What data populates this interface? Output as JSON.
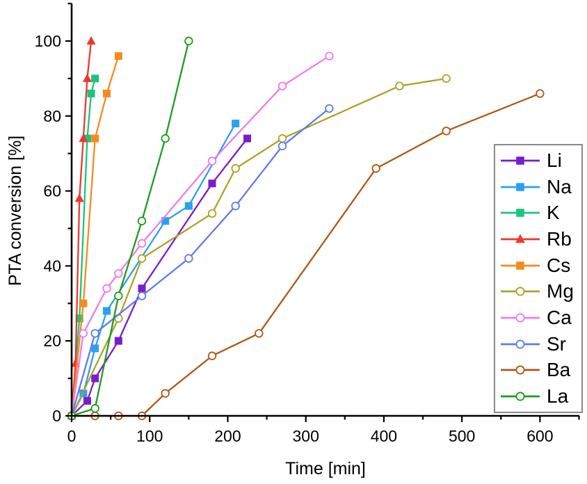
{
  "chart_data": {
    "type": "line",
    "title": "",
    "xlabel": "Time [min]",
    "ylabel": "PTA conversion [%]",
    "xlim": [
      0,
      650
    ],
    "ylim": [
      0,
      110
    ],
    "x_ticks_major": [
      0,
      100,
      200,
      300,
      400,
      500,
      600
    ],
    "x_ticks_minor": [
      50,
      150,
      250,
      350,
      450,
      550,
      650
    ],
    "y_ticks_major": [
      0,
      20,
      40,
      60,
      80,
      100
    ],
    "y_ticks_minor": [
      10,
      30,
      50,
      70,
      90,
      110
    ],
    "grid": false,
    "legend_position": "inside-right",
    "background": "#FFFFFF",
    "axis_color": "#000000",
    "legend_border_color": "#8A8A8A",
    "series": [
      {
        "name": "Li",
        "color": "#7A1CCB",
        "marker": "square-filled",
        "points": [
          [
            0,
            0
          ],
          [
            20,
            4
          ],
          [
            30,
            10
          ],
          [
            60,
            20
          ],
          [
            90,
            34
          ],
          [
            180,
            62
          ],
          [
            225,
            74
          ]
        ]
      },
      {
        "name": "Na",
        "color": "#2AA0F2",
        "marker": "square-filled",
        "points": [
          [
            0,
            0
          ],
          [
            15,
            6
          ],
          [
            30,
            18
          ],
          [
            45,
            28
          ],
          [
            120,
            52
          ],
          [
            150,
            56
          ],
          [
            210,
            78
          ]
        ]
      },
      {
        "name": "K",
        "color": "#19C57D",
        "marker": "square-filled",
        "points": [
          [
            0,
            0
          ],
          [
            10,
            26
          ],
          [
            20,
            74
          ],
          [
            25,
            86
          ],
          [
            30,
            90
          ]
        ]
      },
      {
        "name": "Rb",
        "color": "#F1362E",
        "marker": "triangle-filled",
        "points": [
          [
            0,
            0
          ],
          [
            5,
            14
          ],
          [
            10,
            58
          ],
          [
            15,
            74
          ],
          [
            20,
            90
          ],
          [
            25,
            100
          ]
        ]
      },
      {
        "name": "Cs",
        "color": "#F78A1E",
        "marker": "square-filled",
        "points": [
          [
            0,
            0
          ],
          [
            15,
            30
          ],
          [
            30,
            74
          ],
          [
            45,
            86
          ],
          [
            60,
            96
          ]
        ]
      },
      {
        "name": "Mg",
        "color": "#AEA226",
        "marker": "circle-open",
        "points": [
          [
            0,
            0
          ],
          [
            60,
            26
          ],
          [
            90,
            42
          ],
          [
            180,
            54
          ],
          [
            210,
            66
          ],
          [
            270,
            74
          ],
          [
            420,
            88
          ],
          [
            480,
            90
          ]
        ]
      },
      {
        "name": "Ca",
        "color": "#EF7BE9",
        "marker": "circle-open",
        "points": [
          [
            0,
            0
          ],
          [
            15,
            22
          ],
          [
            45,
            34
          ],
          [
            60,
            38
          ],
          [
            90,
            46
          ],
          [
            180,
            68
          ],
          [
            270,
            88
          ],
          [
            330,
            96
          ]
        ]
      },
      {
        "name": "Sr",
        "color": "#5E7BE9",
        "marker": "circle-open",
        "points": [
          [
            0,
            0
          ],
          [
            30,
            22
          ],
          [
            90,
            32
          ],
          [
            150,
            42
          ],
          [
            210,
            56
          ],
          [
            270,
            72
          ],
          [
            330,
            82
          ]
        ]
      },
      {
        "name": "Ba",
        "color": "#AE5714",
        "marker": "circle-open",
        "points": [
          [
            0,
            0
          ],
          [
            30,
            0
          ],
          [
            60,
            0
          ],
          [
            90,
            0
          ],
          [
            120,
            6
          ],
          [
            180,
            16
          ],
          [
            240,
            22
          ],
          [
            390,
            66
          ],
          [
            480,
            76
          ],
          [
            600,
            86
          ]
        ]
      },
      {
        "name": "La",
        "color": "#1E9B1E",
        "marker": "circle-open",
        "points": [
          [
            0,
            0
          ],
          [
            30,
            2
          ],
          [
            60,
            32
          ],
          [
            90,
            52
          ],
          [
            120,
            74
          ],
          [
            150,
            100
          ]
        ]
      }
    ]
  }
}
